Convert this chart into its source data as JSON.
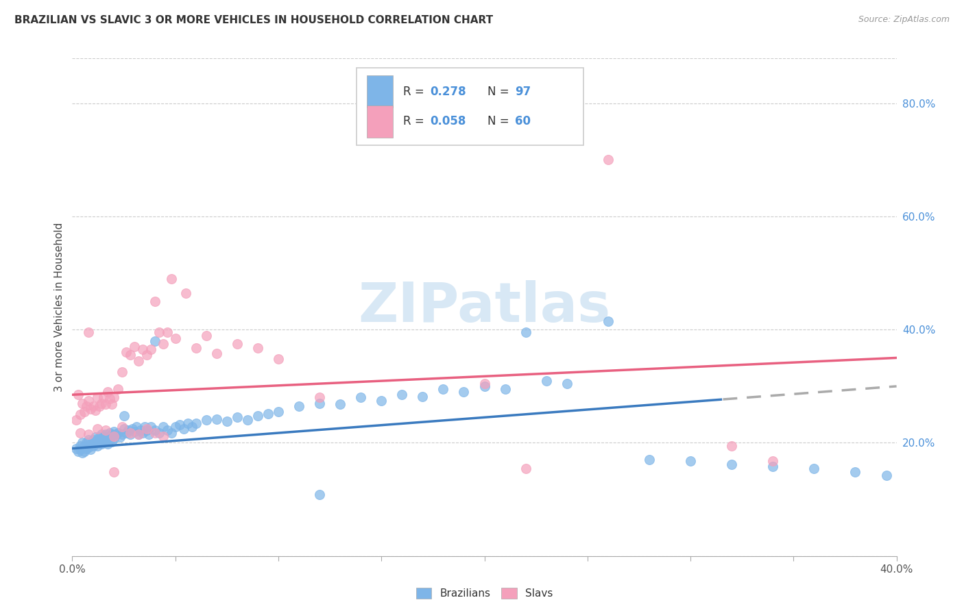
{
  "title": "BRAZILIAN VS SLAVIC 3 OR MORE VEHICLES IN HOUSEHOLD CORRELATION CHART",
  "source": "Source: ZipAtlas.com",
  "ylabel": "3 or more Vehicles in Household",
  "yticks_right": [
    0.2,
    0.4,
    0.6,
    0.8
  ],
  "ytick_labels_right": [
    "20.0%",
    "40.0%",
    "60.0%",
    "80.0%"
  ],
  "xlim": [
    0.0,
    0.4
  ],
  "ylim": [
    0.0,
    0.88
  ],
  "legend_labels": [
    "Brazilians",
    "Slavs"
  ],
  "legend_r": [
    "0.278",
    "0.058"
  ],
  "legend_n": [
    "97",
    "60"
  ],
  "blue_color": "#7EB5E8",
  "pink_color": "#F4A0BB",
  "blue_line_color": "#3A7ABF",
  "pink_line_color": "#E86080",
  "gray_dash_color": "#AAAAAA",
  "watermark_color": "#D8E8F5",
  "blue_x": [
    0.002,
    0.003,
    0.004,
    0.004,
    0.005,
    0.005,
    0.006,
    0.006,
    0.007,
    0.007,
    0.008,
    0.008,
    0.009,
    0.009,
    0.01,
    0.01,
    0.011,
    0.011,
    0.012,
    0.012,
    0.013,
    0.013,
    0.014,
    0.014,
    0.015,
    0.015,
    0.016,
    0.016,
    0.017,
    0.017,
    0.018,
    0.018,
    0.019,
    0.019,
    0.02,
    0.02,
    0.021,
    0.022,
    0.023,
    0.024,
    0.025,
    0.026,
    0.027,
    0.028,
    0.029,
    0.03,
    0.031,
    0.032,
    0.033,
    0.034,
    0.035,
    0.036,
    0.037,
    0.038,
    0.04,
    0.042,
    0.044,
    0.046,
    0.048,
    0.05,
    0.052,
    0.054,
    0.056,
    0.058,
    0.06,
    0.065,
    0.07,
    0.075,
    0.08,
    0.085,
    0.09,
    0.095,
    0.1,
    0.11,
    0.12,
    0.13,
    0.14,
    0.15,
    0.16,
    0.17,
    0.18,
    0.19,
    0.2,
    0.21,
    0.22,
    0.23,
    0.24,
    0.26,
    0.28,
    0.3,
    0.32,
    0.34,
    0.36,
    0.38,
    0.395,
    0.025,
    0.04,
    0.12
  ],
  "blue_y": [
    0.19,
    0.185,
    0.195,
    0.188,
    0.2,
    0.182,
    0.195,
    0.185,
    0.2,
    0.19,
    0.205,
    0.192,
    0.198,
    0.188,
    0.205,
    0.195,
    0.21,
    0.198,
    0.205,
    0.195,
    0.21,
    0.2,
    0.215,
    0.198,
    0.21,
    0.2,
    0.215,
    0.205,
    0.21,
    0.198,
    0.218,
    0.205,
    0.215,
    0.202,
    0.22,
    0.208,
    0.215,
    0.218,
    0.21,
    0.215,
    0.225,
    0.218,
    0.222,
    0.215,
    0.225,
    0.22,
    0.228,
    0.215,
    0.222,
    0.218,
    0.228,
    0.222,
    0.215,
    0.228,
    0.222,
    0.218,
    0.228,
    0.222,
    0.218,
    0.228,
    0.232,
    0.225,
    0.235,
    0.228,
    0.235,
    0.24,
    0.242,
    0.238,
    0.245,
    0.24,
    0.248,
    0.252,
    0.255,
    0.265,
    0.27,
    0.268,
    0.28,
    0.275,
    0.285,
    0.282,
    0.295,
    0.29,
    0.3,
    0.295,
    0.395,
    0.31,
    0.305,
    0.415,
    0.17,
    0.168,
    0.162,
    0.158,
    0.155,
    0.148,
    0.142,
    0.248,
    0.38,
    0.108
  ],
  "pink_x": [
    0.002,
    0.003,
    0.004,
    0.005,
    0.006,
    0.007,
    0.008,
    0.009,
    0.01,
    0.011,
    0.012,
    0.013,
    0.014,
    0.015,
    0.016,
    0.017,
    0.018,
    0.019,
    0.02,
    0.022,
    0.024,
    0.026,
    0.028,
    0.03,
    0.032,
    0.034,
    0.036,
    0.038,
    0.04,
    0.042,
    0.044,
    0.046,
    0.048,
    0.05,
    0.055,
    0.06,
    0.065,
    0.07,
    0.08,
    0.09,
    0.1,
    0.12,
    0.2,
    0.22,
    0.26,
    0.32,
    0.34,
    0.004,
    0.008,
    0.012,
    0.016,
    0.02,
    0.024,
    0.028,
    0.032,
    0.036,
    0.04,
    0.044,
    0.008,
    0.02
  ],
  "pink_y": [
    0.24,
    0.285,
    0.25,
    0.27,
    0.255,
    0.265,
    0.275,
    0.26,
    0.265,
    0.258,
    0.28,
    0.265,
    0.27,
    0.28,
    0.268,
    0.29,
    0.278,
    0.268,
    0.28,
    0.295,
    0.325,
    0.36,
    0.355,
    0.37,
    0.345,
    0.365,
    0.355,
    0.365,
    0.45,
    0.395,
    0.375,
    0.395,
    0.49,
    0.385,
    0.465,
    0.368,
    0.39,
    0.358,
    0.375,
    0.368,
    0.348,
    0.28,
    0.305,
    0.155,
    0.7,
    0.195,
    0.168,
    0.218,
    0.215,
    0.225,
    0.222,
    0.212,
    0.228,
    0.218,
    0.215,
    0.225,
    0.218,
    0.212,
    0.395,
    0.148
  ]
}
